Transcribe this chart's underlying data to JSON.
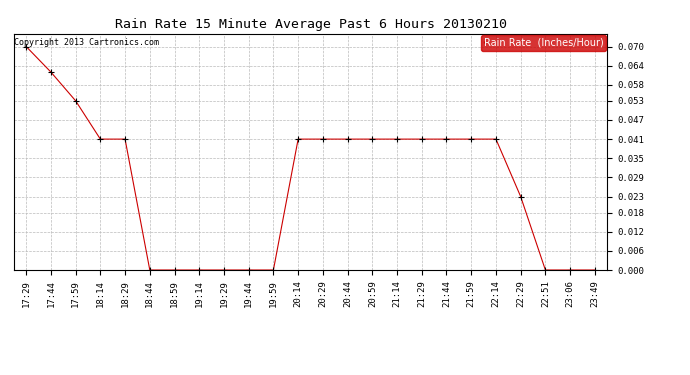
{
  "title": "Rain Rate 15 Minute Average Past 6 Hours 20130210",
  "copyright": "Copyright 2013 Cartronics.com",
  "legend_label": "Rain Rate  (Inches/Hour)",
  "x_labels": [
    "17:29",
    "17:44",
    "17:59",
    "18:14",
    "18:29",
    "18:44",
    "18:59",
    "19:14",
    "19:29",
    "19:44",
    "19:59",
    "20:14",
    "20:29",
    "20:44",
    "20:59",
    "21:14",
    "21:29",
    "21:44",
    "21:59",
    "22:14",
    "22:29",
    "22:51",
    "23:06",
    "23:49"
  ],
  "y_values": [
    0.07,
    0.062,
    0.053,
    0.041,
    0.041,
    0.0,
    0.0,
    0.0,
    0.0,
    0.0,
    0.0,
    0.041,
    0.041,
    0.041,
    0.041,
    0.041,
    0.041,
    0.041,
    0.041,
    0.041,
    0.023,
    0.0,
    0.0,
    0.0
  ],
  "ylim": [
    0.0,
    0.074
  ],
  "yticks": [
    0.0,
    0.006,
    0.012,
    0.018,
    0.023,
    0.029,
    0.035,
    0.041,
    0.047,
    0.053,
    0.058,
    0.064,
    0.07
  ],
  "line_color": "#cc0000",
  "marker": "+",
  "marker_color": "#000000",
  "marker_size": 4,
  "background_color": "#ffffff",
  "plot_bg_color": "#ffffff",
  "grid_color": "#bbbbbb",
  "title_fontsize": 9.5,
  "tick_fontsize": 6.5,
  "legend_bg": "#cc0000",
  "legend_text_color": "#ffffff",
  "legend_fontsize": 7,
  "copyright_color": "#000000",
  "copyright_fontsize": 6,
  "fig_width": 6.9,
  "fig_height": 3.75,
  "dpi": 100
}
